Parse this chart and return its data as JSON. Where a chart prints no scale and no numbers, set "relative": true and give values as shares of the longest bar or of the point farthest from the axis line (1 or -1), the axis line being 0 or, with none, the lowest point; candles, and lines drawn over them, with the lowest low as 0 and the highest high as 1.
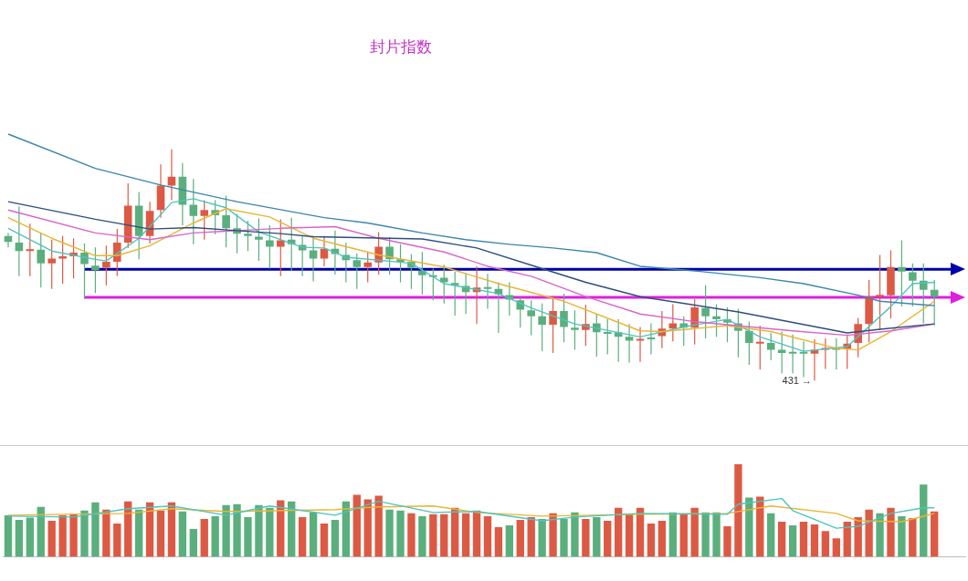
{
  "chart_data": [
    {
      "type": "candlestick",
      "title": "封片指数",
      "relative": true,
      "categories": [
        null,
        null,
        null,
        null,
        null,
        null,
        null,
        null,
        null,
        null,
        null,
        null,
        null,
        null,
        null,
        null,
        null,
        null,
        null,
        null,
        null,
        null,
        null,
        null,
        null,
        null,
        null,
        null,
        null,
        null,
        null,
        null,
        null,
        null,
        null,
        null,
        null,
        null,
        null,
        null,
        null,
        null,
        null,
        null,
        null,
        null,
        null,
        null,
        null,
        null,
        null,
        null,
        null,
        null,
        null,
        null,
        null,
        null,
        null,
        null,
        null,
        null,
        null,
        null,
        null,
        null,
        null,
        null,
        null,
        null,
        null,
        null,
        null,
        null,
        null,
        null,
        null,
        null,
        null,
        null,
        null,
        null,
        null,
        null,
        null,
        null
      ],
      "ohlc": [
        [
          0.626,
          0.639,
          0.577,
          0.6
        ],
        [
          0.597,
          0.754,
          0.452,
          0.561
        ],
        [
          0.561,
          0.679,
          0.452,
          0.567
        ],
        [
          0.567,
          0.639,
          0.403,
          0.508
        ],
        [
          0.508,
          0.61,
          0.397,
          0.528
        ],
        [
          0.528,
          0.626,
          0.42,
          0.538
        ],
        [
          0.538,
          0.616,
          0.443,
          0.554
        ],
        [
          0.554,
          0.593,
          0.354,
          0.505
        ],
        [
          0.498,
          0.577,
          0.38,
          0.479
        ],
        [
          0.489,
          0.584,
          0.413,
          0.515
        ],
        [
          0.515,
          0.656,
          0.452,
          0.597
        ],
        [
          0.597,
          0.853,
          0.574,
          0.757
        ],
        [
          0.757,
          0.816,
          0.525,
          0.626
        ],
        [
          0.626,
          0.774,
          0.593,
          0.734
        ],
        [
          0.738,
          0.935,
          0.705,
          0.843
        ],
        [
          0.843,
          1,
          0.78,
          0.882
        ],
        [
          0.882,
          0.941,
          0.672,
          0.761
        ],
        [
          0.761,
          0.872,
          0.59,
          0.712
        ],
        [
          0.712,
          0.78,
          0.61,
          0.738
        ],
        [
          0.738,
          0.78,
          0.633,
          0.715
        ],
        [
          0.715,
          0.8,
          0.577,
          0.659
        ],
        [
          0.659,
          0.721,
          0.551,
          0.636
        ],
        [
          0.636,
          0.692,
          0.561,
          0.626
        ],
        [
          0.623,
          0.702,
          0.518,
          0.61
        ],
        [
          0.607,
          0.672,
          0.485,
          0.58
        ],
        [
          0.58,
          0.698,
          0.452,
          0.607
        ],
        [
          0.61,
          0.705,
          0.475,
          0.59
        ],
        [
          0.587,
          0.626,
          0.452,
          0.564
        ],
        [
          0.564,
          0.626,
          0.43,
          0.528
        ],
        [
          0.528,
          0.626,
          0.495,
          0.571
        ],
        [
          0.571,
          0.649,
          0.459,
          0.548
        ],
        [
          0.544,
          0.597,
          0.426,
          0.521
        ],
        [
          0.521,
          0.551,
          0.397,
          0.492
        ],
        [
          0.492,
          0.557,
          0.426,
          0.512
        ],
        [
          0.512,
          0.643,
          0.459,
          0.58
        ],
        [
          0.58,
          0.62,
          0.459,
          0.525
        ],
        [
          0.525,
          0.59,
          0.426,
          0.515
        ],
        [
          0.515,
          0.548,
          0.397,
          0.489
        ],
        [
          0.475,
          0.557,
          0.374,
          0.456
        ],
        [
          0.456,
          0.485,
          0.348,
          0.449
        ],
        [
          0.446,
          0.502,
          0.334,
          0.426
        ],
        [
          0.423,
          0.472,
          0.282,
          0.413
        ],
        [
          0.41,
          0.466,
          0.289,
          0.384
        ],
        [
          0.384,
          0.495,
          0.246,
          0.403
        ],
        [
          0.403,
          0.462,
          0.312,
          0.397
        ],
        [
          0.397,
          0.426,
          0.207,
          0.374
        ],
        [
          0.371,
          0.426,
          0.282,
          0.351
        ],
        [
          0.348,
          0.361,
          0.23,
          0.308
        ],
        [
          0.305,
          0.348,
          0.197,
          0.279
        ],
        [
          0.279,
          0.334,
          0.128,
          0.243
        ],
        [
          0.243,
          0.367,
          0.121,
          0.302
        ],
        [
          0.302,
          0.377,
          0.167,
          0.233
        ],
        [
          0.23,
          0.305,
          0.134,
          0.22
        ],
        [
          0.22,
          0.328,
          0.151,
          0.246
        ],
        [
          0.249,
          0.289,
          0.105,
          0.21
        ],
        [
          0.21,
          0.266,
          0.115,
          0.203
        ],
        [
          0.21,
          0.266,
          0.082,
          0.19
        ],
        [
          0.19,
          0.246,
          0.079,
          0.174
        ],
        [
          0.174,
          0.233,
          0.082,
          0.18
        ],
        [
          0.187,
          0.249,
          0.115,
          0.18
        ],
        [
          0.193,
          0.302,
          0.141,
          0.226
        ],
        [
          0.226,
          0.331,
          0.171,
          0.249
        ],
        [
          0.249,
          0.279,
          0.151,
          0.23
        ],
        [
          0.23,
          0.354,
          0.157,
          0.318
        ],
        [
          0.315,
          0.413,
          0.184,
          0.279
        ],
        [
          0.279,
          0.331,
          0.19,
          0.266
        ],
        [
          0.266,
          0.318,
          0.167,
          0.252
        ],
        [
          0.249,
          0.312,
          0.102,
          0.216
        ],
        [
          0.216,
          0.256,
          0.069,
          0.164
        ],
        [
          0.161,
          0.239,
          0.049,
          0.167
        ],
        [
          0.164,
          0.207,
          0.089,
          0.134
        ],
        [
          0.134,
          0.213,
          0.033,
          0.121
        ],
        [
          0.121,
          0.2,
          0.033,
          0.118
        ],
        [
          0.121,
          0.171,
          0.016,
          0.118
        ],
        [
          0.118,
          0.18,
          0,
          0.134
        ],
        [
          0.134,
          0.184,
          0.052,
          0.138
        ],
        [
          0.138,
          0.184,
          0.049,
          0.134
        ],
        [
          0.138,
          0.2,
          0.052,
          0.161
        ],
        [
          0.164,
          0.272,
          0.102,
          0.246
        ],
        [
          0.246,
          0.436,
          0.167,
          0.364
        ],
        [
          0.364,
          0.544,
          0.22,
          0.37
        ],
        [
          0.37,
          0.564,
          0.269,
          0.492
        ],
        [
          0.492,
          0.607,
          0.321,
          0.472
        ],
        [
          0.469,
          0.508,
          0.321,
          0.433
        ],
        [
          0.433,
          0.508,
          0.249,
          0.393
        ],
        [
          0.393,
          0.436,
          0.239,
          0.364
        ]
      ],
      "series": [
        {
          "type": "line",
          "color": "#3b86ad",
          "values": [
            1.066,
            null,
            null,
            null,
            null,
            null,
            null,
            null,
            0.918,
            null,
            null,
            null,
            null,
            null,
            0.846,
            null,
            null,
            null,
            null,
            null,
            null,
            0.774,
            null,
            null,
            null,
            null,
            null,
            null,
            null,
            0.705,
            null,
            null,
            null,
            0.682,
            null,
            null,
            null,
            null,
            0.639,
            null,
            null,
            null,
            0.61,
            null,
            null,
            null,
            0.59,
            null,
            null,
            null,
            0.574,
            null,
            null,
            null,
            0.554,
            null,
            null,
            null,
            0.495,
            null,
            null,
            null,
            null,
            0.475,
            null,
            null,
            null,
            null,
            null,
            0.446,
            null,
            null,
            null,
            0.42,
            null,
            null,
            null,
            null,
            0.37,
            null,
            0.344,
            null,
            null,
            null,
            null,
            0.325
          ]
        },
        {
          "type": "line",
          "color": "#2e4d7c",
          "values": [
            0.774,
            null,
            null,
            null,
            null,
            null,
            null,
            null,
            0.698,
            null,
            null,
            null,
            null,
            0.656,
            null,
            null,
            null,
            0.662,
            null,
            null,
            null,
            0.649,
            null,
            null,
            null,
            0.636,
            null,
            null,
            0.623,
            null,
            null,
            null,
            null,
            null,
            null,
            null,
            null,
            null,
            0.613,
            null,
            null,
            null,
            null,
            0.574,
            null,
            null,
            null,
            null,
            null,
            0.485,
            null,
            null,
            null,
            0.426,
            null,
            null,
            null,
            null,
            0.364,
            null,
            null,
            null,
            null,
            null,
            null,
            null,
            null,
            0.298,
            null,
            null,
            null,
            null,
            null,
            null,
            null,
            null,
            null,
            0.207,
            null,
            null,
            0.223,
            null,
            null,
            null,
            null,
            0.246
          ]
        },
        {
          "type": "line",
          "color": "#d865c9",
          "values": [
            0.738,
            null,
            null,
            null,
            null,
            null,
            null,
            null,
            0.639,
            null,
            null,
            null,
            null,
            0.61,
            null,
            null,
            null,
            0.639,
            null,
            null,
            null,
            null,
            null,
            null,
            null,
            0.659,
            null,
            null,
            null,
            null,
            0.666,
            null,
            null,
            null,
            0.616,
            null,
            null,
            null,
            null,
            null,
            0.557,
            null,
            null,
            null,
            0.495,
            null,
            null,
            null,
            0.452,
            null,
            null,
            null,
            null,
            0.364,
            null,
            null,
            null,
            null,
            0.289,
            null,
            null,
            null,
            null,
            0.256,
            null,
            null,
            null,
            null,
            null,
            null,
            null,
            null,
            0.216,
            null,
            null,
            null,
            null,
            0.197,
            null,
            null,
            null,
            0.216,
            null,
            null,
            null,
            0.246
          ]
        },
        {
          "type": "line",
          "color": "#e8b535",
          "values": [
            0.705,
            null,
            null,
            null,
            0.616,
            null,
            null,
            null,
            0.541,
            null,
            0.541,
            null,
            null,
            0.584,
            null,
            null,
            null,
            0.682,
            null,
            null,
            0.744,
            null,
            null,
            null,
            0.708,
            null,
            null,
            null,
            0.616,
            null,
            null,
            null,
            null,
            null,
            0.544,
            null,
            null,
            null,
            null,
            null,
            0.492,
            null,
            null,
            null,
            null,
            0.42,
            null,
            null,
            null,
            null,
            null,
            0.344,
            null,
            null,
            null,
            null,
            null,
            null,
            0.216,
            null,
            0.213,
            null,
            null,
            null,
            null,
            null,
            0.239,
            null,
            null,
            null,
            0.213,
            null,
            null,
            null,
            null,
            null,
            0.141,
            null,
            0.134,
            null,
            null,
            0.213,
            null,
            null,
            null,
            0.344
          ]
        },
        {
          "type": "line",
          "color": "#4fc4bf",
          "values": [
            0.659,
            null,
            null,
            null,
            0.561,
            null,
            null,
            null,
            0.525,
            0.518,
            null,
            null,
            0.616,
            null,
            null,
            0.77,
            null,
            0.787,
            null,
            null,
            0.748,
            null,
            null,
            0.643,
            null,
            null,
            null,
            0.577,
            null,
            0.574,
            null,
            0.534,
            null,
            null,
            null,
            null,
            null,
            0.508,
            null,
            null,
            0.42,
            null,
            null,
            null,
            null,
            0.377,
            null,
            null,
            0.315,
            null,
            null,
            null,
            0.246,
            null,
            null,
            null,
            null,
            null,
            0.19,
            null,
            null,
            null,
            0.233,
            null,
            null,
            null,
            0.266,
            null,
            null,
            0.19,
            null,
            null,
            null,
            0.128,
            null,
            null,
            null,
            0.148,
            null,
            null,
            null,
            0.321,
            null,
            0.42,
            null,
            0.426
          ]
        }
      ],
      "ref_lines": [
        {
          "axis": "y",
          "value": 0.482,
          "color": "#0000a8"
        },
        {
          "axis": "y",
          "value": 0.361,
          "color": "#e01ee0"
        }
      ],
      "annotations": [
        "431 →"
      ]
    },
    {
      "type": "bar",
      "relative": true,
      "categories": [
        null,
        null,
        null,
        null,
        null,
        null,
        null,
        null,
        null,
        null,
        null,
        null,
        null,
        null,
        null,
        null,
        null,
        null,
        null,
        null,
        null,
        null,
        null,
        null,
        null,
        null,
        null,
        null,
        null,
        null,
        null,
        null,
        null,
        null,
        null,
        null,
        null,
        null,
        null,
        null,
        null,
        null,
        null,
        null,
        null,
        null,
        null,
        null,
        null,
        null,
        null,
        null,
        null,
        null,
        null,
        null,
        null,
        null,
        null,
        null,
        null,
        null,
        null,
        null,
        null,
        null,
        null,
        null,
        null,
        null,
        null,
        null,
        null,
        null,
        null,
        null,
        null,
        null,
        null,
        null,
        null,
        null,
        null,
        null,
        null,
        null
      ],
      "values": [
        0.45,
        0.4,
        0.425,
        0.54,
        0.39,
        0.45,
        0.46,
        0.5,
        0.59,
        0.51,
        0.36,
        0.6,
        0.51,
        0.59,
        0.5,
        0.59,
        0.49,
        0.3,
        0.41,
        0.44,
        0.56,
        0.57,
        0.43,
        0.56,
        0.53,
        0.61,
        0.6,
        0.43,
        0.48,
        0.36,
        0.4,
        0.6,
        0.67,
        0.62,
        0.66,
        0.51,
        0.5,
        0.47,
        0.44,
        0.46,
        0.46,
        0.53,
        0.47,
        0.5,
        0.44,
        0.32,
        0.34,
        0.4,
        0.43,
        0.41,
        0.47,
        0.41,
        0.48,
        0.41,
        0.43,
        0.39,
        0.53,
        0.46,
        0.53,
        0.36,
        0.39,
        0.48,
        0.46,
        0.53,
        0.48,
        0.48,
        0.33,
        1,
        0.64,
        0.65,
        0.47,
        0.38,
        0.34,
        0.38,
        0.35,
        0.28,
        0.2,
        0.38,
        0.43,
        0.51,
        0.47,
        0.53,
        0.44,
        0.42,
        0.78,
        0.49
      ],
      "colors": [
        "#5aaf7d",
        "#5aaf7d",
        "#5aaf7d",
        "#5aaf7d",
        "#dc5a44",
        "#dc5a44",
        "#dc5a44",
        "#5aaf7d",
        "#5aaf7d",
        "#dc5a44",
        "#dc5a44",
        "#dc5a44",
        "#5aaf7d",
        "#dc5a44",
        "#dc5a44",
        "#dc5a44",
        "#5aaf7d",
        "#5aaf7d",
        "#dc5a44",
        "#5aaf7d",
        "#5aaf7d",
        "#5aaf7d",
        "#5aaf7d",
        "#5aaf7d",
        "#5aaf7d",
        "#dc5a44",
        "#5aaf7d",
        "#dc5a44",
        "#5aaf7d",
        "#dc5a44",
        "#5aaf7d",
        "#5aaf7d",
        "#dc5a44",
        "#dc5a44",
        "#dc5a44",
        "#5aaf7d",
        "#5aaf7d",
        "#dc5a44",
        "#5aaf7d",
        "#dc5a44",
        "#dc5a44",
        "#dc5a44",
        "#dc5a44",
        "#dc5a44",
        "#dc5a44",
        "#dc5a44",
        "#5aaf7d",
        "#dc5a44",
        "#dc5a44",
        "#5aaf7d",
        "#dc5a44",
        "#5aaf7d",
        "#5aaf7d",
        "#dc5a44",
        "#5aaf7d",
        "#dc5a44",
        "#dc5a44",
        "#dc5a44",
        "#dc5a44",
        "#dc5a44",
        "#dc5a44",
        "#5aaf7d",
        "#dc5a44",
        "#dc5a44",
        "#5aaf7d",
        "#5aaf7d",
        "#dc5a44",
        "#dc5a44",
        "#5aaf7d",
        "#dc5a44",
        "#5aaf7d",
        "#dc5a44",
        "#5aaf7d",
        "#dc5a44",
        "#dc5a44",
        "#dc5a44",
        "#dc5a44",
        "#dc5a44",
        "#dc5a44",
        "#dc5a44",
        "#5aaf7d",
        "#dc5a44",
        "#5aaf7d",
        "#dc5a44",
        "#5aaf7d",
        "#dc5a44"
      ],
      "series": [
        {
          "type": "line",
          "color": "#4fc4bf",
          "values": [
            0.44,
            null,
            null,
            null,
            null,
            null,
            0.43,
            null,
            null,
            null,
            null,
            0.52,
            null,
            null,
            null,
            0.55,
            null,
            null,
            null,
            null,
            0.45,
            null,
            null,
            null,
            0.55,
            null,
            null,
            null,
            null,
            null,
            0.45,
            null,
            null,
            null,
            0.6,
            null,
            null,
            null,
            null,
            0.48,
            null,
            null,
            null,
            0.49,
            null,
            null,
            null,
            null,
            null,
            0.39,
            null,
            null,
            0.43,
            null,
            null,
            null,
            null,
            null,
            0.47,
            null,
            null,
            null,
            null,
            null,
            null,
            null,
            0.46,
            0.57,
            null,
            null,
            null,
            0.63,
            0.5,
            null,
            null,
            null,
            0.31,
            null,
            0.33,
            null,
            null,
            0.47,
            null,
            null,
            0.53,
            0.53
          ]
        },
        {
          "type": "line",
          "color": "#e8b535",
          "values": [
            0.45,
            null,
            null,
            null,
            null,
            null,
            null,
            null,
            null,
            null,
            null,
            0.47,
            null,
            null,
            null,
            0.52,
            null,
            null,
            null,
            null,
            0.49,
            null,
            null,
            null,
            null,
            null,
            null,
            null,
            null,
            null,
            0.51,
            null,
            null,
            null,
            0.54,
            null,
            null,
            null,
            null,
            0.55,
            null,
            null,
            null,
            0.48,
            null,
            null,
            null,
            null,
            null,
            0.44,
            null,
            null,
            null,
            null,
            null,
            null,
            null,
            null,
            0.46,
            null,
            null,
            null,
            null,
            null,
            null,
            null,
            0.47,
            null,
            null,
            null,
            0.55,
            null,
            null,
            null,
            null,
            null,
            0.47,
            null,
            0.39,
            null,
            null,
            null,
            0.38,
            null,
            null,
            0.47
          ]
        }
      ]
    }
  ]
}
